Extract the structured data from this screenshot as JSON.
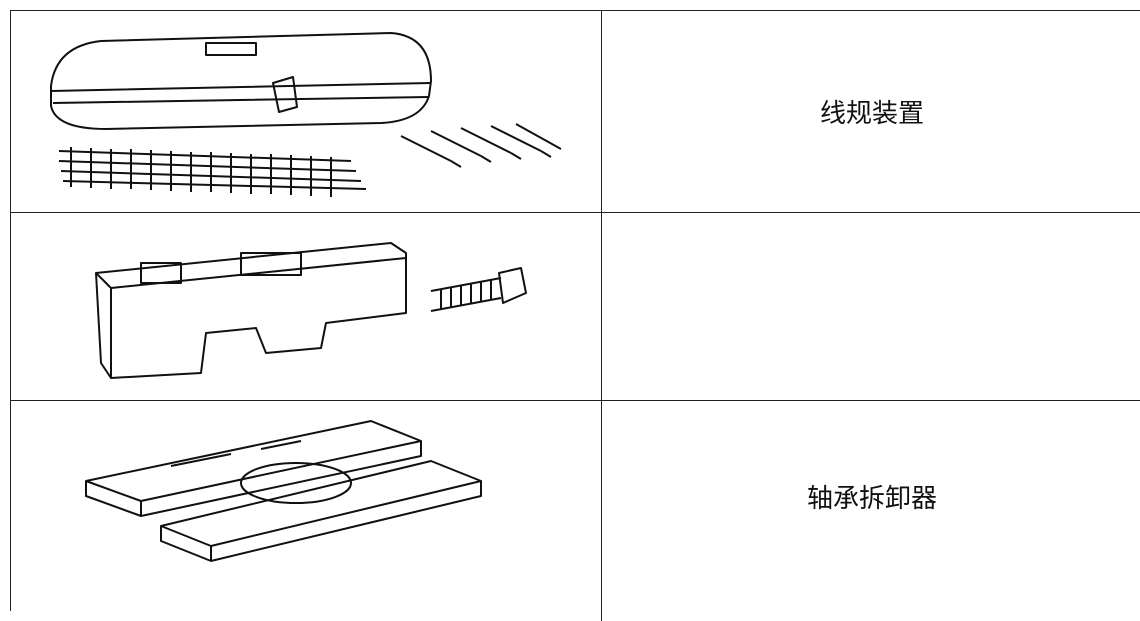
{
  "table": {
    "rows": [
      {
        "label": "线规装置"
      },
      {},
      {
        "label": "轴承拆卸器"
      }
    ]
  }
}
